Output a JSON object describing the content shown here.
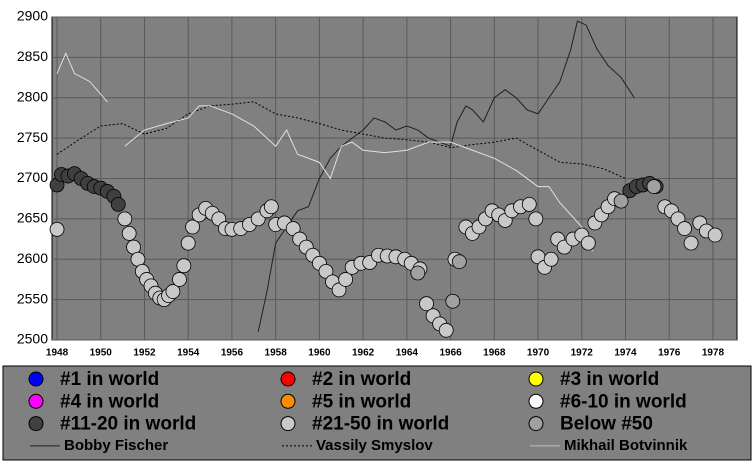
{
  "chart_data": {
    "type": "scatter",
    "xlim": [
      1947.77,
      1979.1
    ],
    "ylim": [
      2500,
      2900
    ],
    "xticks": [
      1948,
      1950,
      1952,
      1954,
      1956,
      1958,
      1960,
      1962,
      1964,
      1966,
      1968,
      1970,
      1972,
      1974,
      1976,
      1978
    ],
    "yticks": [
      2500,
      2550,
      2600,
      2650,
      2700,
      2750,
      2800,
      2850,
      2900
    ],
    "grid": true,
    "series": [
      {
        "name": "#1 in world",
        "color": "#0000ff",
        "mark": "dot",
        "x": [],
        "values": []
      },
      {
        "name": "#2 in world",
        "color": "#ff0000",
        "mark": "dot",
        "x": [],
        "values": []
      },
      {
        "name": "#3 in world",
        "color": "#ffff00",
        "mark": "dot",
        "x": [],
        "values": []
      },
      {
        "name": "#4 in world",
        "color": "#ff00ff",
        "mark": "dot",
        "x": [],
        "values": []
      },
      {
        "name": "#5 in world",
        "color": "#ff8c00",
        "mark": "dot",
        "x": [],
        "values": []
      },
      {
        "name": "#6-10 in world",
        "color": "#ffffff",
        "mark": "dot",
        "x": [],
        "values": []
      },
      {
        "name": "#11-20 in world",
        "color": "#404040",
        "mark": "dot",
        "x": [
          1948,
          1948.2,
          1948.5,
          1948.8,
          1949.1,
          1949.4,
          1949.7,
          1950,
          1950.3,
          1950.6,
          1950.8,
          1974.2,
          1974.5,
          1974.8,
          1975.1,
          1975.4
        ],
        "values": [
          2692,
          2705,
          2703,
          2706,
          2700,
          2694,
          2690,
          2688,
          2684,
          2678,
          2668,
          2685,
          2690,
          2692,
          2694,
          2690
        ]
      },
      {
        "name": "#21-50 in world",
        "color": "#c8c8c8",
        "mark": "dot",
        "x": [
          1948,
          1951.1,
          1951.3,
          1951.5,
          1951.7,
          1951.9,
          1952.1,
          1952.3,
          1952.5,
          1952.7,
          1952.9,
          1953.1,
          1953.3,
          1953.6,
          1953.8,
          1954,
          1954.2,
          1954.5,
          1954.8,
          1955.1,
          1955.4,
          1955.7,
          1956,
          1956.4,
          1956.8,
          1957.2,
          1957.6,
          1957.8,
          1958,
          1958.4,
          1958.8,
          1959.1,
          1959.4,
          1959.7,
          1960,
          1960.3,
          1960.6,
          1960.9,
          1961.2,
          1961.5,
          1961.9,
          1962.3,
          1962.7,
          1963.1,
          1963.5,
          1963.9,
          1964.2,
          1964.6,
          1964.9,
          1965.2,
          1965.5,
          1965.8,
          1966.2,
          1966.7,
          1967,
          1967.3,
          1967.6,
          1967.9,
          1968.2,
          1968.5,
          1968.8,
          1969.2,
          1969.6,
          1969.9,
          1970,
          1970.3,
          1970.6,
          1970.9,
          1971.2,
          1971.6,
          1972,
          1972.3,
          1972.6,
          1972.9,
          1973.2,
          1973.5,
          1975.8,
          1976.1,
          1976.4,
          1976.7,
          1977,
          1977.4,
          1977.7,
          1978.1
        ],
        "values": [
          2637,
          2650,
          2632,
          2615,
          2600,
          2585,
          2575,
          2567,
          2558,
          2552,
          2550,
          2555,
          2560,
          2575,
          2592,
          2620,
          2640,
          2655,
          2663,
          2657,
          2650,
          2638,
          2637,
          2638,
          2643,
          2650,
          2660,
          2665,
          2643,
          2645,
          2638,
          2625,
          2615,
          2605,
          2595,
          2585,
          2572,
          2562,
          2575,
          2590,
          2595,
          2596,
          2605,
          2604,
          2603,
          2600,
          2595,
          2588,
          2545,
          2530,
          2520,
          2512,
          2600,
          2640,
          2632,
          2640,
          2650,
          2660,
          2655,
          2648,
          2660,
          2665,
          2668,
          2650,
          2603,
          2590,
          2600,
          2625,
          2615,
          2625,
          2630,
          2620,
          2645,
          2655,
          2665,
          2675,
          2665,
          2660,
          2650,
          2638,
          2620,
          2645,
          2635,
          2630
        ]
      },
      {
        "name": "Below #50",
        "color": "#a0a0a0",
        "mark": "dot",
        "x": [
          1964.5,
          1966.1,
          1966.4,
          1973.8,
          1975.3
        ],
        "values": [
          2583,
          2548,
          2597,
          2672,
          2690
        ]
      },
      {
        "name": "Bobby Fischer",
        "color": "#202020",
        "mark": "line",
        "dash": "solid",
        "x": [
          1957.2,
          1957.6,
          1958,
          1958.5,
          1959,
          1959.5,
          1960,
          1960.5,
          1961,
          1961.5,
          1962,
          1962.5,
          1963,
          1963.5,
          1964,
          1964.5,
          1965,
          1965.5,
          1966,
          1966.3,
          1966.7,
          1967,
          1967.5,
          1968,
          1968.5,
          1969,
          1969.5,
          1970,
          1970.5,
          1971,
          1971.5,
          1971.8,
          1972.2,
          1972.7,
          1973.2,
          1973.8,
          1974.4
        ],
        "values": [
          2510,
          2560,
          2620,
          2640,
          2660,
          2665,
          2700,
          2725,
          2740,
          2750,
          2760,
          2775,
          2770,
          2760,
          2765,
          2760,
          2750,
          2745,
          2740,
          2770,
          2790,
          2785,
          2770,
          2800,
          2810,
          2800,
          2785,
          2780,
          2800,
          2820,
          2860,
          2895,
          2890,
          2860,
          2840,
          2825,
          2800
        ]
      },
      {
        "name": "Vassily Smyslov",
        "color": "#000000",
        "mark": "line",
        "dash": "dotted",
        "x": [
          1948,
          1949,
          1950,
          1951,
          1952,
          1953,
          1954,
          1955,
          1956,
          1957,
          1958,
          1959,
          1960,
          1961,
          1962,
          1963,
          1964,
          1965,
          1966,
          1967,
          1968,
          1969,
          1970,
          1971,
          1972,
          1973,
          1974
        ],
        "values": [
          2730,
          2748,
          2765,
          2768,
          2755,
          2762,
          2780,
          2790,
          2792,
          2795,
          2780,
          2775,
          2768,
          2760,
          2755,
          2750,
          2748,
          2745,
          2738,
          2742,
          2745,
          2750,
          2735,
          2720,
          2718,
          2712,
          2700
        ]
      },
      {
        "name": "Mikhail Botvinnik",
        "color": "#e0e0e0",
        "mark": "line",
        "dash": "solid",
        "x": [
          1948,
          1948.4,
          1948.8,
          1949.5,
          1950.3,
          1950.7,
          1951.1,
          1952,
          1953,
          1954,
          1954.5,
          1955,
          1956,
          1957,
          1958,
          1958.5,
          1959,
          1960,
          1960.5,
          1961,
          1961.5,
          1962,
          1963,
          1964,
          1965,
          1966,
          1967,
          1968,
          1969,
          1970,
          1970.5,
          1971,
          1972,
          1972.5
        ],
        "values": [
          2830,
          2855,
          2830,
          2820,
          2795,
          null,
          2740,
          2760,
          2768,
          2775,
          2790,
          2790,
          2780,
          2765,
          2740,
          2760,
          2730,
          2720,
          2700,
          2740,
          2745,
          2735,
          2732,
          2735,
          2745,
          2745,
          2735,
          2725,
          2710,
          2690,
          2690,
          2670,
          2640,
          2610
        ]
      }
    ]
  }
}
